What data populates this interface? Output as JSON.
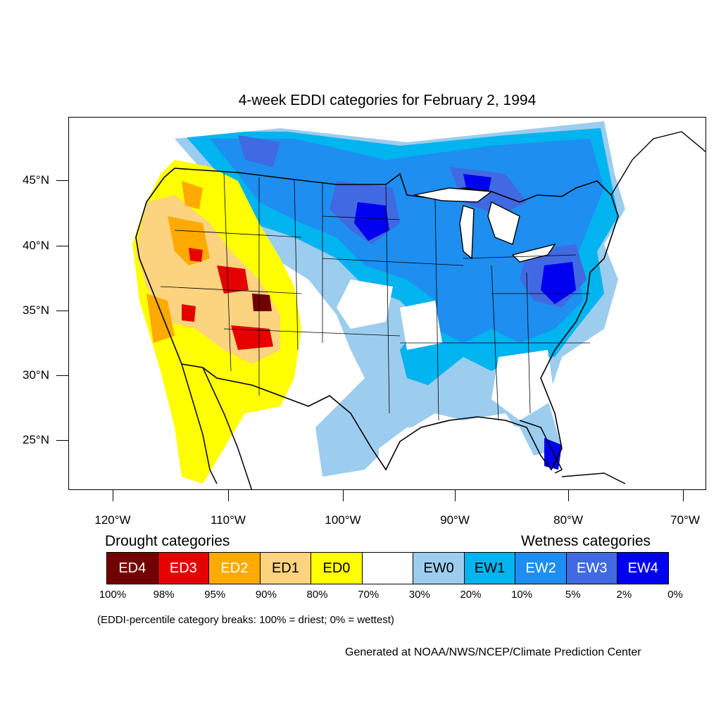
{
  "map": {
    "title": "4-week EDDI categories for February 2, 1994",
    "lat_labels": [
      "45°N",
      "40°N",
      "35°N",
      "30°N",
      "25°N"
    ],
    "lon_labels": [
      "120°W",
      "110°W",
      "100°W",
      "90°W",
      "80°W",
      "70°W"
    ],
    "projection": "lat-lon",
    "lat_range": [
      21,
      50
    ],
    "lon_range": [
      -124.2,
      -68.5
    ]
  },
  "legend": {
    "drought_title": "Drought categories",
    "wetness_title": "Wetness categories",
    "categories": [
      {
        "label": "ED4",
        "color": "#730000",
        "text_color": "#ffffff"
      },
      {
        "label": "ED3",
        "color": "#e60000",
        "text_color": "#ffffff"
      },
      {
        "label": "ED2",
        "color": "#ffaa00",
        "text_color": "#ffffff"
      },
      {
        "label": "ED1",
        "color": "#fcd37f",
        "text_color": "#000000"
      },
      {
        "label": "ED0",
        "color": "#ffff00",
        "text_color": "#000000"
      },
      {
        "label": "",
        "color": "#ffffff",
        "text_color": "#000000"
      },
      {
        "label": "EW0",
        "color": "#9dcdee",
        "text_color": "#000000"
      },
      {
        "label": "EW1",
        "color": "#00b4f0",
        "text_color": "#000000"
      },
      {
        "label": "EW2",
        "color": "#1e8ef0",
        "text_color": "#ffffff"
      },
      {
        "label": "EW3",
        "color": "#4169e1",
        "text_color": "#ffffff"
      },
      {
        "label": "EW4",
        "color": "#0000f0",
        "text_color": "#ffffff"
      }
    ],
    "breaks": [
      "100%",
      "98%",
      "95%",
      "90%",
      "80%",
      "70%",
      "30%",
      "20%",
      "10%",
      "5%",
      "2%",
      "0%"
    ],
    "note": "(EDDI-percentile category breaks: 100% = driest; 0% = wettest)"
  },
  "credit": "Generated at NOAA/NWS/NCEP/Climate Prediction Center"
}
